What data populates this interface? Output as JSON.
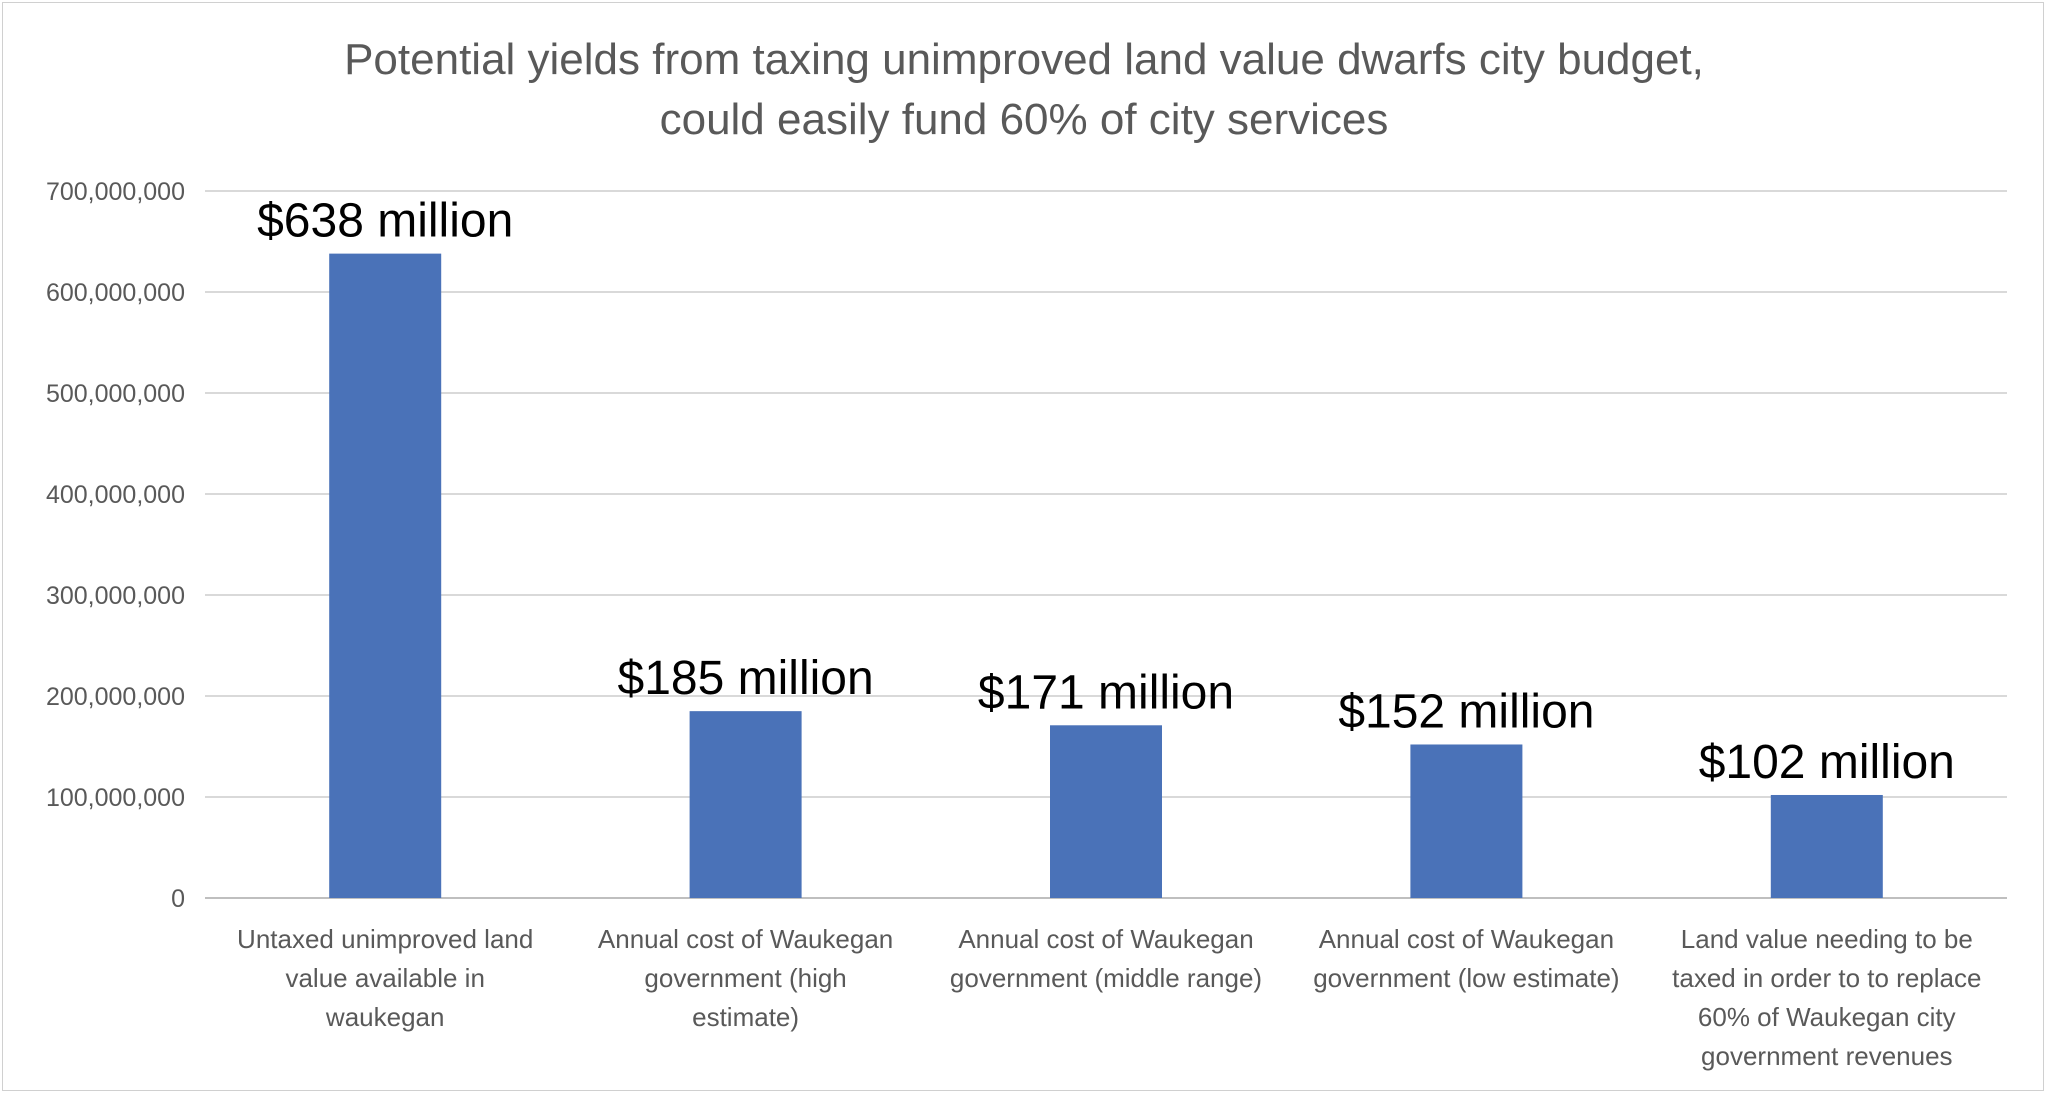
{
  "chart_data": {
    "type": "bar",
    "title": [
      "Potential yields from taxing unimproved land value dwarfs city budget,",
      "could easily fund 60% of city services"
    ],
    "categories": [
      [
        "Untaxed unimproved land",
        "value available in",
        "waukegan"
      ],
      [
        "Annual cost of Waukegan",
        "government (high",
        "estimate)"
      ],
      [
        "Annual cost of Waukegan",
        "government (middle range)"
      ],
      [
        "Annual cost of Waukegan",
        "government (low estimate)"
      ],
      [
        "Land value needing to be",
        "taxed in order to to replace",
        "60% of Waukegan city",
        "government revenues"
      ]
    ],
    "values": [
      638000000,
      185000000,
      171000000,
      152000000,
      102000000
    ],
    "data_labels": [
      "$638 million",
      "$185 million",
      "$171 million",
      "$152 million",
      "$102 million"
    ],
    "yticks": [
      "0",
      "100,000,000",
      "200,000,000",
      "300,000,000",
      "400,000,000",
      "500,000,000",
      "600,000,000",
      "700,000,000"
    ],
    "ylim": [
      0,
      700000000
    ],
    "grid": true,
    "legend": "none",
    "colors": {
      "bar": "#4A72B8",
      "grid": "#D9D9D9",
      "axis": "#BFBFBF",
      "text": "#595959",
      "label": "#000000"
    }
  }
}
